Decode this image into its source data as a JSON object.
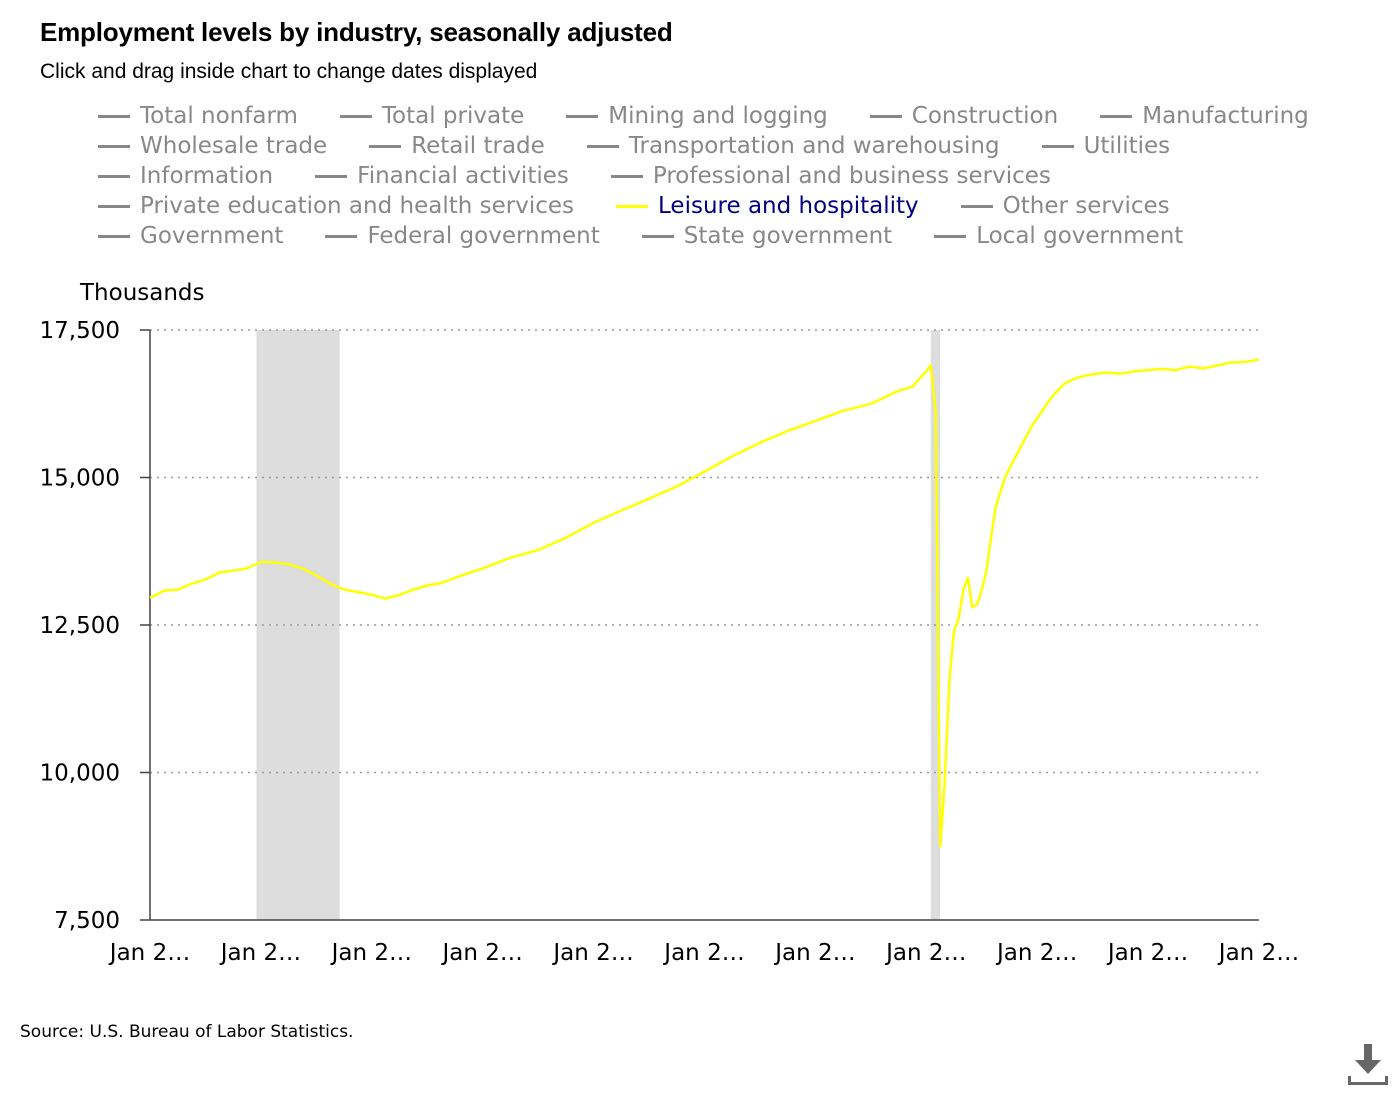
{
  "header": {
    "title": "Employment levels by industry, seasonally adjusted",
    "subtitle": "Click and drag inside chart to change dates displayed"
  },
  "legend": [
    {
      "label": "Total nonfarm",
      "active": false
    },
    {
      "label": "Total private",
      "active": false
    },
    {
      "label": "Mining and logging",
      "active": false
    },
    {
      "label": "Construction",
      "active": false
    },
    {
      "label": "Manufacturing",
      "active": false
    },
    {
      "label": "Wholesale trade",
      "active": false
    },
    {
      "label": "Retail trade",
      "active": false
    },
    {
      "label": "Transportation and warehousing",
      "active": false
    },
    {
      "label": "Utilities",
      "active": false
    },
    {
      "label": "Information",
      "active": false
    },
    {
      "label": "Financial activities",
      "active": false
    },
    {
      "label": "Professional and business services",
      "active": false
    },
    {
      "label": "Private education and health services",
      "active": false
    },
    {
      "label": "Leisure and hospitality",
      "active": true
    },
    {
      "label": "Other services",
      "active": false
    },
    {
      "label": "Government",
      "active": false
    },
    {
      "label": "Federal government",
      "active": false
    },
    {
      "label": "State government",
      "active": false
    },
    {
      "label": "Local government",
      "active": false
    }
  ],
  "footer": {
    "source": "Source: U.S. Bureau of Labor Statistics."
  },
  "icons": {
    "download": "download-icon"
  },
  "colors": {
    "series": "#ffff00",
    "active_label": "#000080",
    "inactive": "#888888",
    "recession": "#dddddd",
    "grid": "#999999"
  },
  "chart_data": {
    "type": "line",
    "ylabel": "Thousands",
    "ylim": [
      7500,
      17500
    ],
    "yticks": [
      7500,
      10000,
      12500,
      15000,
      17500
    ],
    "ytick_labels": [
      "7,500",
      "10,000",
      "12,500",
      "15,000",
      "17,500"
    ],
    "xlim": [
      2006.0,
      2026.0
    ],
    "xticks": [
      2006,
      2008,
      2010,
      2012,
      2014,
      2016,
      2018,
      2020,
      2022,
      2024,
      2026
    ],
    "xtick_labels": [
      "Jan 2…",
      "Jan 2…",
      "Jan 2…",
      "Jan 2…",
      "Jan 2…",
      "Jan 2…",
      "Jan 2…",
      "Jan 2…",
      "Jan 2…",
      "Jan 2…",
      "Jan 2…"
    ],
    "grid": true,
    "recessions": [
      [
        2007.92,
        2009.42
      ],
      [
        2020.08,
        2020.25
      ]
    ],
    "series": [
      {
        "name": "Leisure and hospitality",
        "x": [
          2006.0,
          2006.25,
          2006.5,
          2006.75,
          2007.0,
          2007.25,
          2007.5,
          2007.75,
          2008.0,
          2008.25,
          2008.5,
          2008.75,
          2009.0,
          2009.25,
          2009.5,
          2009.75,
          2010.0,
          2010.25,
          2010.5,
          2010.75,
          2011.0,
          2011.25,
          2011.5,
          2011.75,
          2012.0,
          2012.5,
          2013.0,
          2013.5,
          2014.0,
          2014.5,
          2015.0,
          2015.5,
          2016.0,
          2016.5,
          2017.0,
          2017.5,
          2018.0,
          2018.5,
          2019.0,
          2019.5,
          2019.75,
          2020.0,
          2020.08,
          2020.17,
          2020.25,
          2020.33,
          2020.42,
          2020.5,
          2020.58,
          2020.67,
          2020.75,
          2020.83,
          2020.92,
          2021.0,
          2021.08,
          2021.17,
          2021.25,
          2021.42,
          2021.58,
          2021.75,
          2021.92,
          2022.0,
          2022.25,
          2022.5,
          2022.75,
          2023.0,
          2023.25,
          2023.5,
          2023.75,
          2024.0,
          2024.25,
          2024.5,
          2024.75,
          2025.0,
          2025.25,
          2025.5,
          2025.75,
          2026.0
        ],
        "values": [
          12960,
          13080,
          13100,
          13200,
          13270,
          13390,
          13420,
          13460,
          13570,
          13560,
          13530,
          13460,
          13340,
          13200,
          13100,
          13060,
          13010,
          12950,
          13010,
          13100,
          13170,
          13210,
          13300,
          13380,
          13460,
          13640,
          13770,
          13980,
          14230,
          14440,
          14640,
          14850,
          15100,
          15360,
          15590,
          15790,
          15960,
          16130,
          16250,
          16470,
          16540,
          16800,
          16900,
          16100,
          8750,
          9800,
          11600,
          12400,
          12600,
          13100,
          13300,
          12800,
          12850,
          13100,
          13400,
          14000,
          14500,
          15000,
          15300,
          15600,
          15900,
          16000,
          16350,
          16600,
          16700,
          16750,
          16780,
          16760,
          16800,
          16820,
          16840,
          16820,
          16880,
          16850,
          16900,
          16950,
          16960,
          17000
        ]
      }
    ]
  }
}
